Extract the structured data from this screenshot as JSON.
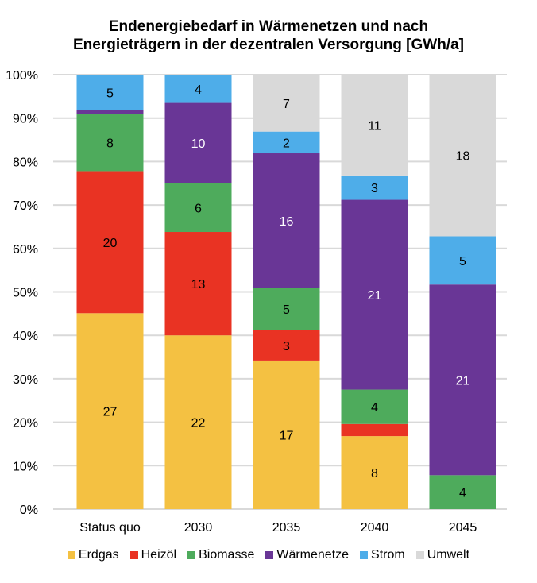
{
  "chart_data": {
    "type": "bar",
    "stacked": true,
    "normalized": true,
    "title": "Endenergiebedarf in Wärmenetzen und nach Energieträgern in der dezentralen Versorgung [GWh/a]",
    "title_lines": [
      "Endenergiebedarf in Wärmenetzen und nach",
      "Energieträgern in der dezentralen Versorgung [GWh/a]"
    ],
    "xlabel": "",
    "ylabel": "",
    "ylim": [
      0,
      100
    ],
    "yticks": [
      "0%",
      "10%",
      "20%",
      "30%",
      "40%",
      "50%",
      "60%",
      "70%",
      "80%",
      "90%",
      "100%"
    ],
    "grid": true,
    "legend_position": "bottom",
    "categories": [
      "Status quo",
      "2030",
      "2035",
      "2040",
      "2045"
    ],
    "series": [
      {
        "name": "Erdgas",
        "color": "#F4C142",
        "percent": [
          45.1,
          40.0,
          34.2,
          16.8,
          0
        ],
        "labels": [
          "27",
          "22",
          "17",
          "8",
          ""
        ],
        "label_color": "#000000"
      },
      {
        "name": "Heizöl",
        "color": "#E93323",
        "percent": [
          32.7,
          23.8,
          7.0,
          2.8,
          0
        ],
        "labels": [
          "20",
          "13",
          "3",
          "",
          ""
        ],
        "label_color": "#000000"
      },
      {
        "name": "Biomasse",
        "color": "#4EAB5C",
        "percent": [
          13.2,
          11.2,
          9.7,
          7.9,
          7.8
        ],
        "labels": [
          "8",
          "6",
          "5",
          "4",
          "4"
        ],
        "label_color": "#000000"
      },
      {
        "name": "Wärmenetze",
        "color": "#693696",
        "percent": [
          0.8,
          18.5,
          31.0,
          43.7,
          43.9
        ],
        "labels": [
          "",
          "10",
          "16",
          "21",
          "21"
        ],
        "label_color": "#FFFFFF"
      },
      {
        "name": "Strom",
        "color": "#4EADE9",
        "percent": [
          8.2,
          6.5,
          5.0,
          5.6,
          11.1
        ],
        "labels": [
          "5",
          "4",
          "2",
          "3",
          "5"
        ],
        "label_color": "#000000"
      },
      {
        "name": "Umwelt",
        "color": "#D9D9D9",
        "percent": [
          0,
          0,
          13.1,
          23.2,
          37.2
        ],
        "labels": [
          "",
          "",
          "7",
          "11",
          "18"
        ],
        "label_color": "#000000"
      }
    ]
  }
}
